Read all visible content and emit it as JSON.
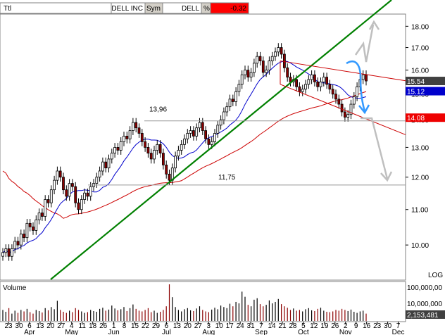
{
  "header": {
    "ticker_label": "Ttl",
    "company": "DELL INC",
    "sym_label": "Sym",
    "symbol": "DELL",
    "pct_label": "%",
    "change": "-0.32"
  },
  "volume_label": "Volume",
  "log_label": "LOG",
  "colors": {
    "up_candle": "#000000",
    "down_candle": "#8b0000",
    "ma_short": "#0000cc",
    "ma_long": "#cc0000",
    "trend_line": "#008000",
    "channel": "#cc0000",
    "level_line": "#999999",
    "projection_up": "#bfbfbf",
    "projection_blue": "#3399ff",
    "tag_dark": "#404040",
    "tag_blue": "#0000cc",
    "tag_red": "#ee0000"
  },
  "price_tags": [
    {
      "label": "15.54",
      "value": 15.54,
      "color": "tag_dark"
    },
    {
      "label": "15.12",
      "value": 15.12,
      "color": "tag_blue"
    },
    {
      "label": "14.08",
      "value": 14.08,
      "color": "tag_red"
    }
  ],
  "annotations": [
    {
      "label": "13,96",
      "value": 13.96
    },
    {
      "label": "11,75",
      "value": 11.75
    }
  ],
  "volume_axis": {
    "tick_labels": [
      "100,000,00",
      "10,000,000"
    ],
    "current_label": "2,153,481"
  },
  "chart_data": {
    "type": "candlestick",
    "scale": "log",
    "ylim": [
      9.1,
      18.6
    ],
    "y_ticks": [
      10,
      11,
      12,
      13,
      14,
      15,
      16,
      17,
      18
    ],
    "y_tick_labels": [
      "10.00",
      "11.00",
      "12.00",
      "13.00",
      "14.00",
      "15.00",
      "16.00",
      "17.00",
      "18.00"
    ],
    "x_day_labels": [
      "23",
      "30",
      "6",
      "13",
      "20",
      "27",
      "4",
      "11",
      "18",
      "26",
      "1",
      "8",
      "15",
      "22",
      "29",
      "6",
      "13",
      "20",
      "27",
      "3",
      "10",
      "17",
      "24",
      "31",
      "7",
      "14",
      "21",
      "28",
      "5",
      "12",
      "19",
      "26",
      "2",
      "9",
      "16",
      "23",
      "30",
      "7"
    ],
    "x_month_labels": [
      "Apr",
      "May",
      "Jun",
      "Jul",
      "Aug",
      "Sep",
      "Oct",
      "Nov",
      "Dec"
    ],
    "close": [
      9.8,
      9.9,
      9.7,
      9.9,
      10.1,
      10.0,
      10.3,
      10.2,
      10.6,
      10.5,
      10.4,
      10.7,
      10.9,
      10.8,
      11.3,
      11.2,
      11.6,
      11.9,
      12.2,
      12.0,
      11.6,
      11.4,
      11.8,
      11.7,
      11.2,
      11.0,
      11.3,
      11.5,
      11.4,
      11.7,
      11.8,
      12.0,
      12.2,
      12.5,
      12.3,
      12.6,
      12.8,
      13.0,
      12.9,
      13.2,
      13.4,
      13.3,
      13.6,
      13.9,
      13.7,
      13.5,
      13.2,
      13.0,
      12.8,
      12.6,
      12.9,
      13.1,
      12.8,
      12.4,
      12.1,
      11.9,
      12.3,
      12.7,
      12.9,
      13.1,
      13.3,
      13.5,
      13.6,
      13.4,
      13.7,
      13.9,
      13.6,
      13.3,
      13.1,
      13.2,
      13.5,
      13.8,
      14.0,
      14.3,
      14.5,
      14.8,
      14.7,
      15.1,
      15.4,
      15.8,
      16.0,
      15.7,
      15.9,
      16.3,
      16.6,
      16.4,
      15.9,
      16.0,
      16.4,
      16.6,
      16.8,
      17.0,
      16.7,
      16.1,
      15.7,
      15.5,
      15.6,
      15.3,
      15.1,
      15.2,
      15.4,
      15.6,
      15.8,
      15.5,
      15.3,
      15.5,
      15.7,
      15.4,
      15.2,
      15.0,
      14.8,
      14.6,
      14.3,
      14.1,
      14.2,
      14.6,
      14.9,
      15.3,
      15.6,
      15.8,
      15.54
    ],
    "vol_rel": [
      0.3,
      0.25,
      0.35,
      0.2,
      0.28,
      0.22,
      0.3,
      0.26,
      0.33,
      0.24,
      0.2,
      0.3,
      0.27,
      0.23,
      0.35,
      0.29,
      0.38,
      0.32,
      0.55,
      0.3,
      0.25,
      0.22,
      0.28,
      0.24,
      0.35,
      0.3,
      0.26,
      0.22,
      0.24,
      0.3,
      0.27,
      0.25,
      0.33,
      0.36,
      0.28,
      0.31,
      0.42,
      0.34,
      0.29,
      0.32,
      0.38,
      0.27,
      0.35,
      0.45,
      0.33,
      0.28,
      0.26,
      0.3,
      0.35,
      0.24,
      0.28,
      0.22,
      0.25,
      0.3,
      0.4,
      1.0,
      0.65,
      0.38,
      0.3,
      0.26,
      0.32,
      0.35,
      0.29,
      0.27,
      0.34,
      0.4,
      0.3,
      0.26,
      0.24,
      0.31,
      0.36,
      0.32,
      0.42,
      0.38,
      0.35,
      0.47,
      0.4,
      0.52,
      0.48,
      0.8,
      0.66,
      0.44,
      0.4,
      0.58,
      0.62,
      0.46,
      0.4,
      0.44,
      0.56,
      0.48,
      0.52,
      0.6,
      0.46,
      0.4,
      0.36,
      0.3,
      0.34,
      0.28,
      0.3,
      0.26,
      0.32,
      0.35,
      0.29,
      0.27,
      0.33,
      0.36,
      0.28,
      0.25,
      0.24,
      0.26,
      0.3,
      0.28,
      0.33,
      0.3,
      0.27,
      0.31,
      0.25,
      0.22,
      0.26,
      0.28,
      0.2
    ]
  }
}
